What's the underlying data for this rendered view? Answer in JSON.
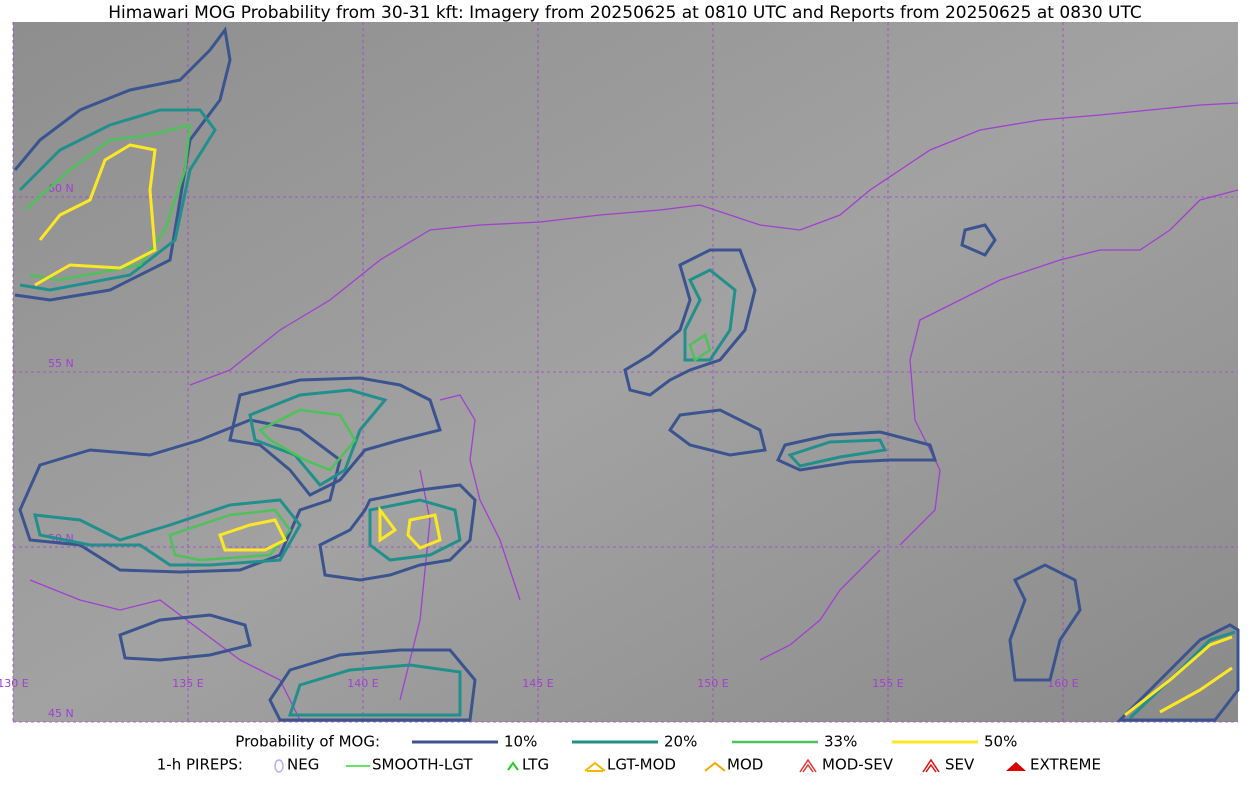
{
  "header": {
    "title": "Himawari MOG Probability from 30-31 kft: Imagery from 20250625 at 0810 UTC and Reports from 20250625 at 0830 UTC"
  },
  "map": {
    "lat_labels": [
      "60 N",
      "55 N",
      "50 N",
      "45 N"
    ],
    "lon_labels": [
      "130 E",
      "135 E",
      "140 E",
      "145 E",
      "150 E",
      "155 E",
      "160 E"
    ]
  },
  "legend": {
    "title": "Probability of MOG:",
    "items": [
      "10%",
      "20%",
      "33%",
      "50%"
    ]
  },
  "pireps": {
    "title": "1-h PIREPS:",
    "items": [
      "NEG",
      "SMOOTH-LGT",
      "LTG",
      "LGT-MOD",
      "MOD",
      "MOD-SEV",
      "SEV",
      "EXTREME"
    ]
  }
}
